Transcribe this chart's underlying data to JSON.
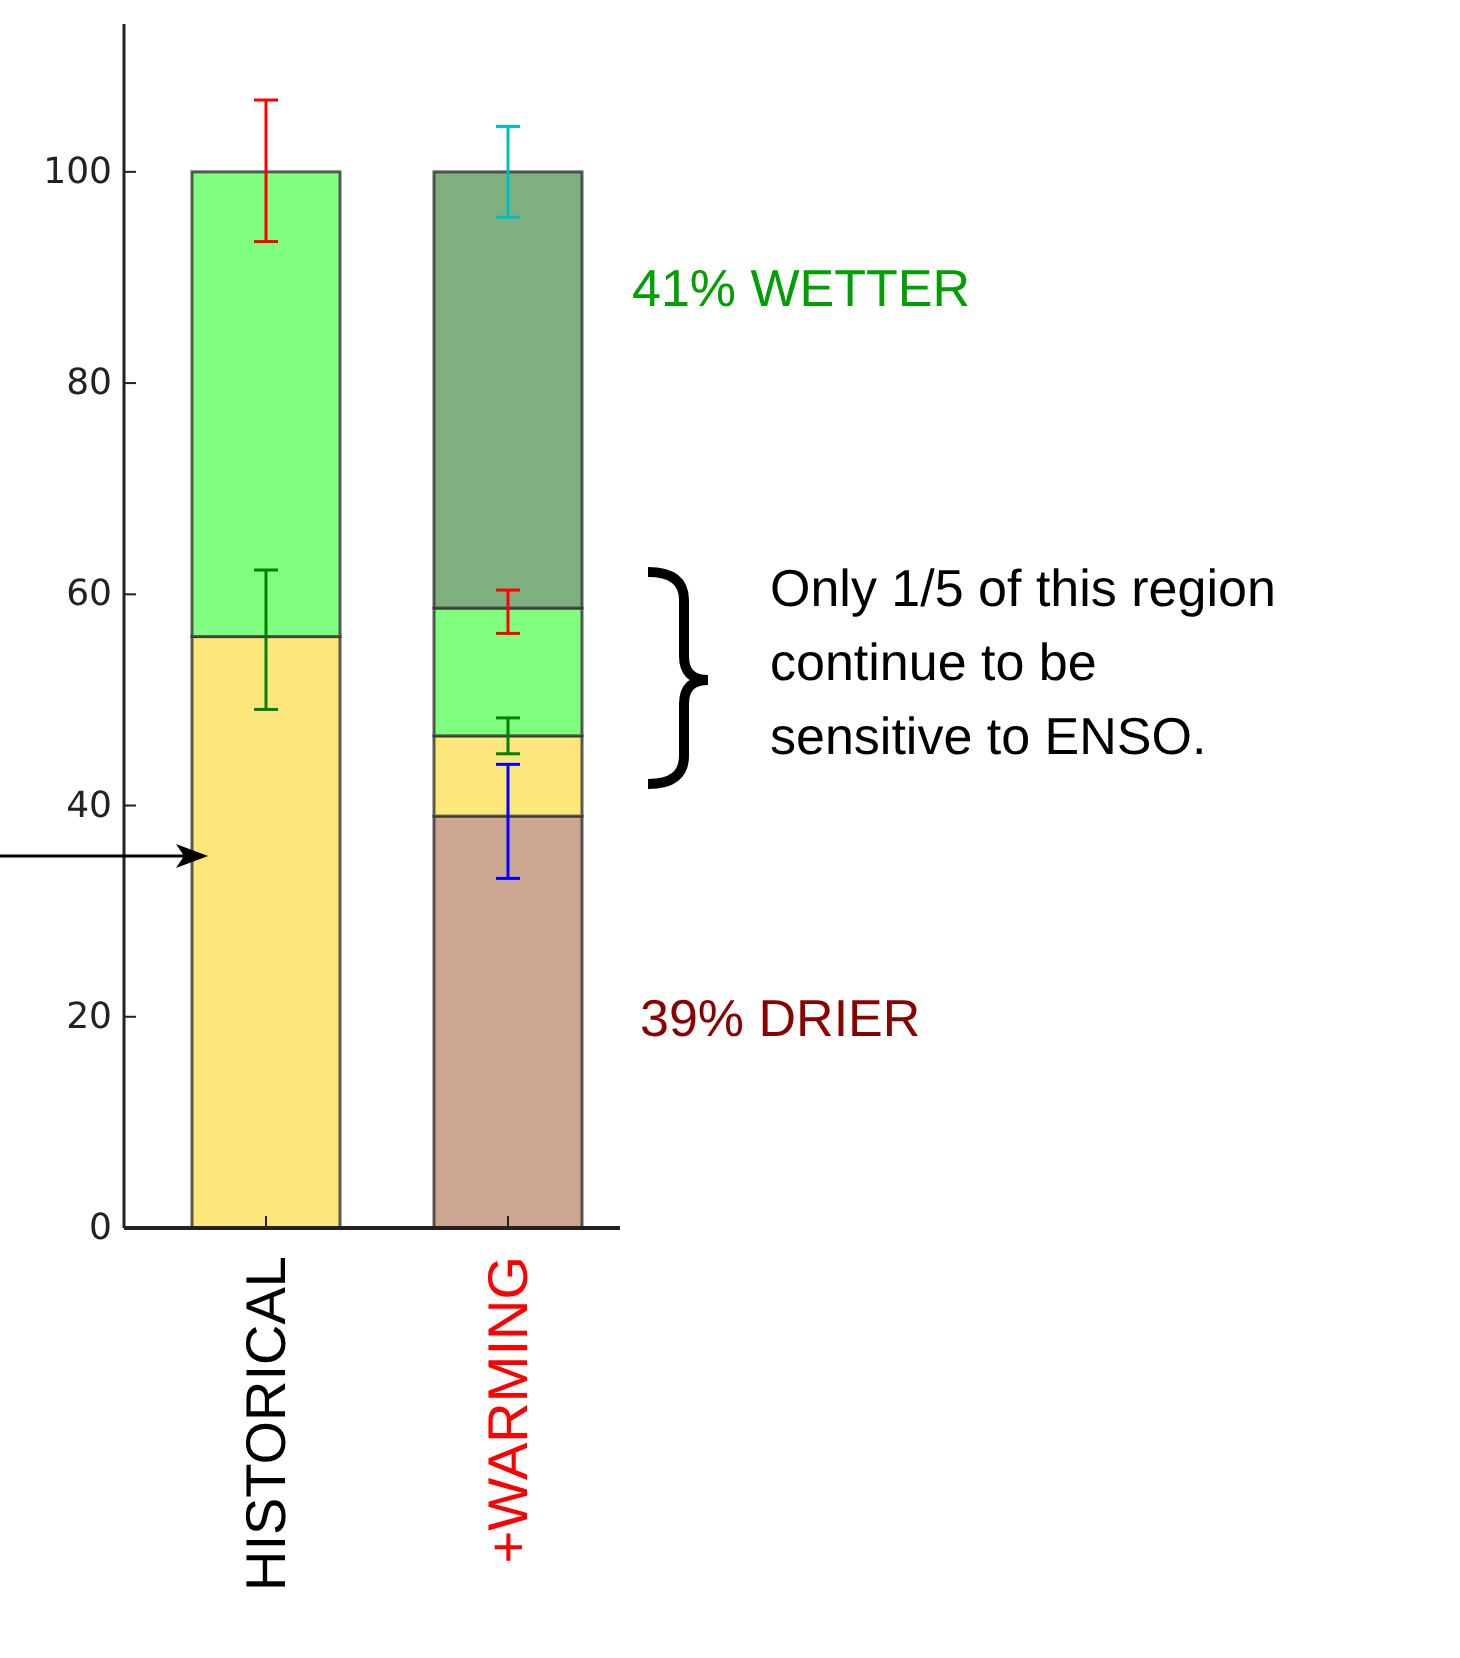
{
  "chart_data": {
    "type": "bar",
    "stacked": true,
    "categories": [
      "HISTORICAL",
      "+WARMING"
    ],
    "series": [
      {
        "color": "#cda692",
        "values": [
          null,
          39
        ],
        "errors": [
          null,
          [
            33.1,
            43.9
          ]
        ]
      },
      {
        "color": "#fde67a",
        "values": [
          56,
          7.6
        ],
        "errors": [
          [
            49.1,
            62.3
          ],
          [
            44.9,
            48.3
          ]
        ]
      },
      {
        "color": "#80fe80",
        "values": [
          44,
          12.1
        ],
        "errors": [
          [
            93.4,
            106.8
          ],
          [
            56.3,
            60.4
          ]
        ]
      },
      {
        "color": "#7fb07f",
        "values": [
          null,
          41.3
        ],
        "errors": [
          null,
          [
            95.7,
            104.3
          ]
        ]
      }
    ],
    "ylim": [
      0,
      114
    ],
    "yticks": [
      0,
      20,
      40,
      60,
      80,
      100
    ],
    "grid": false,
    "annotations": [
      "41% WETTER",
      "Only 1/5 of this region continue to be sensitive to ENSO.",
      "39% DRIER"
    ]
  }
}
